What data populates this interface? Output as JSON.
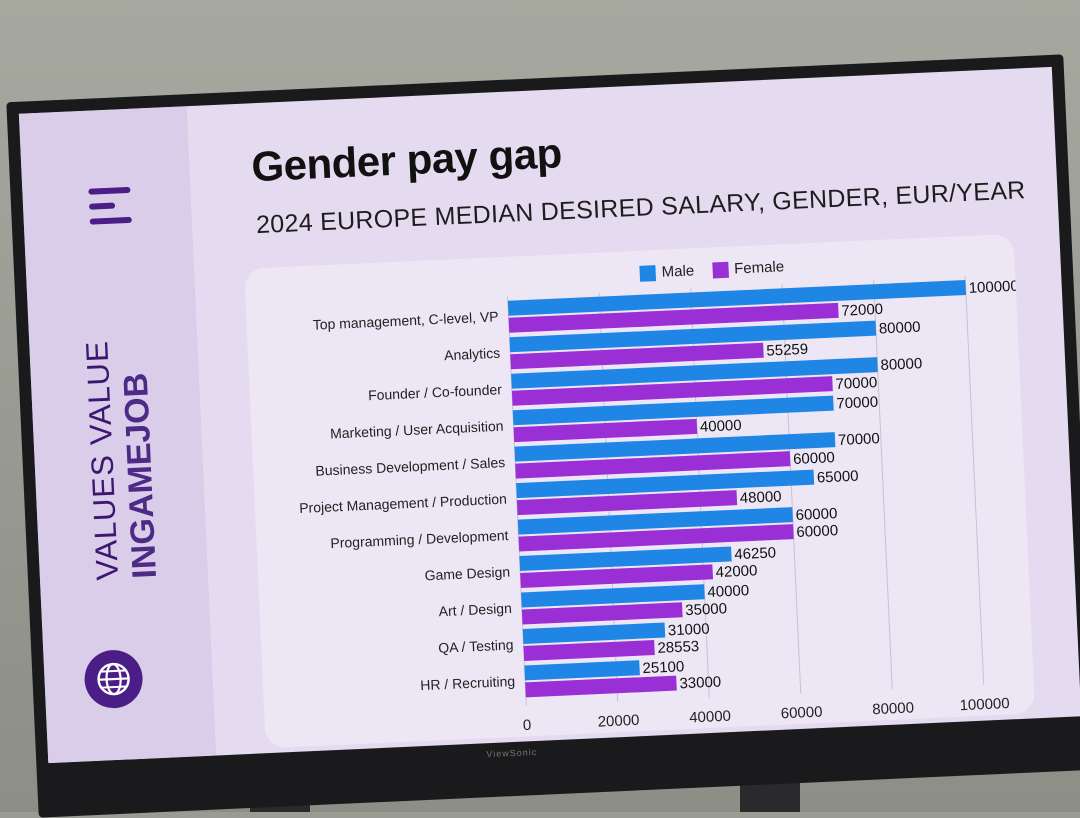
{
  "slide": {
    "title": "Gender pay gap",
    "subtitle": "2024 EUROPE MEDIAN DESIRED SALARY, GENDER, EUR/YEAR",
    "brand_line1": "VALUES VALUE",
    "brand_line2": "INGAMEJOB",
    "globe_icon": "globe-icon",
    "menu_icon": "menu-bars-icon",
    "tv_brand": "ViewSonic"
  },
  "colors": {
    "male": "#1f86e6",
    "female": "#9b2fd6",
    "accent": "#4a1e86"
  },
  "chart_data": {
    "type": "bar",
    "orientation": "horizontal",
    "title": "Gender pay gap",
    "subtitle": "2024 EUROPE MEDIAN DESIRED SALARY, GENDER, EUR/YEAR",
    "categories": [
      "Top management, C-level, VP",
      "Analytics",
      "Founder / Co-founder",
      "Marketing / User Acquisition",
      "Business Development / Sales",
      "Project Management / Production",
      "Programming / Development",
      "Game Design",
      "Art / Design",
      "QA / Testing",
      "HR / Recruiting"
    ],
    "series": [
      {
        "name": "Male",
        "values": [
          100000,
          80000,
          80000,
          70000,
          70000,
          65000,
          60000,
          46250,
          40000,
          31000,
          25100
        ]
      },
      {
        "name": "Female",
        "values": [
          72000,
          55259,
          70000,
          40000,
          60000,
          48000,
          60000,
          42000,
          35000,
          28553,
          33000
        ]
      }
    ],
    "xlim": [
      0,
      100000
    ],
    "xticks": [
      "0",
      "20000",
      "40000",
      "60000",
      "80000",
      "100000"
    ],
    "grid": true,
    "legend_position": "top"
  }
}
